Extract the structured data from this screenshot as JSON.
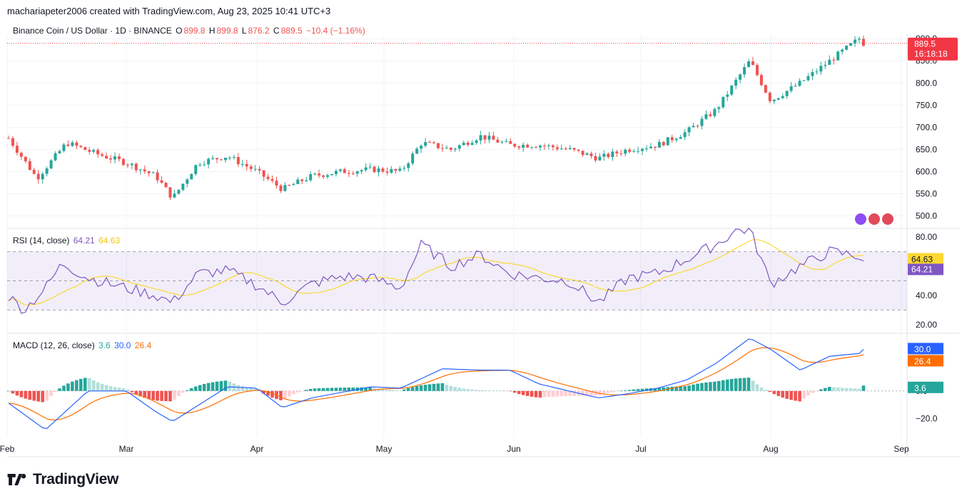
{
  "header": {
    "caption": "machariapeter2006 created with TradingView.com, Aug 23, 2025 10:41 UTC+3"
  },
  "main_legend": {
    "symbol": "Binance Coin / US Dollar · 1D · BINANCE",
    "open_label": "O",
    "open": "899.8",
    "high_label": "H",
    "high": "899.8",
    "low_label": "L",
    "low": "876.2",
    "close_label": "C",
    "close": "889.5",
    "change": "−10.4 (−1.16%)"
  },
  "price_badge": {
    "price": "889.5",
    "countdown": "16:18:18",
    "color": "#f23645"
  },
  "rsi_legend": {
    "label": "RSI (14, close)",
    "rsi": "64.21",
    "ma": "64.63"
  },
  "macd_legend": {
    "label": "MACD (12, 26, close)",
    "hist": "3.6",
    "macd": "30.0",
    "signal": "26.4"
  },
  "logo": {
    "text": "TradingView"
  },
  "colors": {
    "up": "#26a69a",
    "down": "#ef5350",
    "rsi": "#7e57c2",
    "rsi_ma": "#fdd835",
    "macd": "#2962ff",
    "signal": "#ff6d00",
    "grid": "#f0f3fa",
    "axis_text": "#131722"
  },
  "chart_data": [
    {
      "type": "candlestick",
      "title": "Binance Coin / US Dollar · 1D · BINANCE",
      "x_labels": [
        "Feb",
        "Mar",
        "Apr",
        "May",
        "Jun",
        "Jul",
        "Aug",
        "Sep"
      ],
      "y_ticks": [
        "500.0",
        "550.0",
        "600.0",
        "650.0",
        "700.0",
        "750.0",
        "800.0",
        "850.0",
        "900.0"
      ],
      "ylim": [
        475,
        910
      ],
      "last_price": 889.5,
      "weekly_close_anchors": [
        [
          "Feb 1",
          680
        ],
        [
          "Feb 8",
          585
        ],
        [
          "Feb 15",
          665
        ],
        [
          "Feb 22",
          640
        ],
        [
          "Mar 1",
          620
        ],
        [
          "Mar 8",
          590
        ],
        [
          "Mar 12",
          540
        ],
        [
          "Mar 18",
          620
        ],
        [
          "Mar 25",
          635
        ],
        [
          "Apr 1",
          600
        ],
        [
          "Apr 7",
          560
        ],
        [
          "Apr 14",
          590
        ],
        [
          "Apr 21",
          600
        ],
        [
          "Apr 28",
          605
        ],
        [
          "May 5",
          600
        ],
        [
          "May 10",
          665
        ],
        [
          "May 17",
          650
        ],
        [
          "May 24",
          680
        ],
        [
          "May 31",
          660
        ],
        [
          "Jun 7",
          660
        ],
        [
          "Jun 14",
          650
        ],
        [
          "Jun 21",
          630
        ],
        [
          "Jun 28",
          650
        ],
        [
          "Jul 5",
          660
        ],
        [
          "Jul 12",
          690
        ],
        [
          "Jul 19",
          740
        ],
        [
          "Jul 27",
          850
        ],
        [
          "Aug 1",
          760
        ],
        [
          "Aug 8",
          800
        ],
        [
          "Aug 15",
          850
        ],
        [
          "Aug 22",
          900
        ],
        [
          "Aug 23",
          889.5
        ]
      ]
    },
    {
      "type": "line",
      "title": "RSI (14, close)",
      "y_ticks": [
        "20.00",
        "40.00",
        "60.00",
        "80.00"
      ],
      "ylim": [
        15,
        85
      ],
      "bands": [
        30,
        50,
        70
      ],
      "series": [
        {
          "name": "RSI",
          "last": 64.21
        },
        {
          "name": "RSI-based MA",
          "last": 64.63
        }
      ],
      "rsi_anchors": [
        [
          "Feb 1",
          40
        ],
        [
          "Feb 5",
          30
        ],
        [
          "Feb 10",
          45
        ],
        [
          "Feb 14",
          62
        ],
        [
          "Feb 20",
          52
        ],
        [
          "Mar 1",
          45
        ],
        [
          "Mar 8",
          40
        ],
        [
          "Mar 12",
          35
        ],
        [
          "Mar 18",
          55
        ],
        [
          "Mar 25",
          57
        ],
        [
          "Apr 1",
          47
        ],
        [
          "Apr 7",
          35
        ],
        [
          "Apr 14",
          48
        ],
        [
          "Apr 21",
          53
        ],
        [
          "Apr 28",
          52
        ],
        [
          "May 5",
          45
        ],
        [
          "May 10",
          75
        ],
        [
          "May 17",
          60
        ],
        [
          "May 24",
          68
        ],
        [
          "May 31",
          55
        ],
        [
          "Jun 7",
          52
        ],
        [
          "Jun 14",
          50
        ],
        [
          "Jun 21",
          35
        ],
        [
          "Jun 28",
          52
        ],
        [
          "Jul 5",
          55
        ],
        [
          "Jul 12",
          65
        ],
        [
          "Jul 19",
          75
        ],
        [
          "Jul 24",
          85
        ],
        [
          "Jul 27",
          85
        ],
        [
          "Aug 1",
          48
        ],
        [
          "Aug 8",
          60
        ],
        [
          "Aug 15",
          70
        ],
        [
          "Aug 22",
          67
        ],
        [
          "Aug 23",
          64.21
        ]
      ]
    },
    {
      "type": "bar",
      "title": "MACD (12, 26, close)",
      "y_ticks": [
        "−20.0",
        "0.0",
        "20.0"
      ],
      "ylim": [
        -33,
        40
      ],
      "series": [
        {
          "name": "Histogram",
          "last": 3.6
        },
        {
          "name": "MACD",
          "last": 30.0
        },
        {
          "name": "Signal",
          "last": 26.4
        }
      ],
      "macd_anchors": [
        [
          "Feb 1",
          -8
        ],
        [
          "Feb 10",
          -28
        ],
        [
          "Feb 20",
          0
        ],
        [
          "Mar 1",
          0
        ],
        [
          "Mar 8",
          -15
        ],
        [
          "Mar 12",
          -22
        ],
        [
          "Mar 25",
          3
        ],
        [
          "Apr 1",
          2
        ],
        [
          "Apr 7",
          -12
        ],
        [
          "Apr 14",
          -5
        ],
        [
          "Apr 28",
          3
        ],
        [
          "May 5",
          2
        ],
        [
          "May 15",
          16
        ],
        [
          "May 24",
          15
        ],
        [
          "May 31",
          15
        ],
        [
          "Jun 7",
          5
        ],
        [
          "Jun 21",
          -5
        ],
        [
          "Jun 28",
          -2
        ],
        [
          "Jul 5",
          2
        ],
        [
          "Jul 12",
          8
        ],
        [
          "Jul 19",
          20
        ],
        [
          "Jul 27",
          38
        ],
        [
          "Aug 1",
          30
        ],
        [
          "Aug 8",
          15
        ],
        [
          "Aug 15",
          25
        ],
        [
          "Aug 22",
          27
        ],
        [
          "Aug 23",
          30
        ]
      ]
    }
  ]
}
